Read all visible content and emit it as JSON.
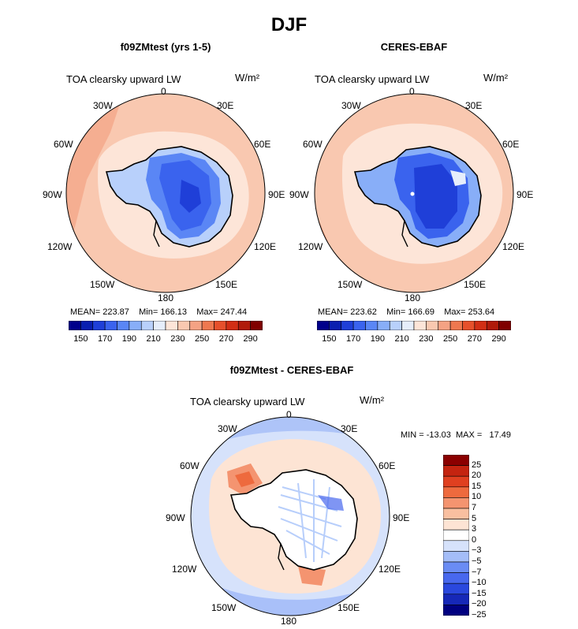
{
  "title": "DJF",
  "colors": {
    "abs_scale": [
      "#00008b",
      "#0a1fb0",
      "#1f3fd8",
      "#3a63ee",
      "#5a86f5",
      "#88aef8",
      "#b8d0fb",
      "#e6eefb",
      "#fde5d8",
      "#f9c8b0",
      "#f4a284",
      "#ee7850",
      "#e6502b",
      "#d22e14",
      "#b01a0a",
      "#800000"
    ],
    "diff_scale": [
      "#000080",
      "#1628b8",
      "#2a48de",
      "#4868ee",
      "#6a8cf4",
      "#a4bdf8",
      "#d6e2fb",
      "#ffffff",
      "#fde4d4",
      "#f9bfa0",
      "#f49470",
      "#ee6a3e",
      "#e04020",
      "#c42410",
      "#8b0000"
    ],
    "land_line": "#000000",
    "frame": "#000000"
  },
  "panels": [
    {
      "name": "f09ZMtest (yrs 1-5)",
      "variable": "TOA clearsky upward LW",
      "units": "W/m²",
      "stats": "MEAN= 223.87    Min= 166.13    Max= 247.44",
      "labelbar_ticks": [
        "150",
        "170",
        "190",
        "210",
        "230",
        "250",
        "270",
        "290"
      ]
    },
    {
      "name": "CERES-EBAF",
      "variable": "TOA clearsky upward LW",
      "units": "W/m²",
      "stats": "MEAN= 223.62    Min= 166.69    Max= 253.64",
      "labelbar_ticks": [
        "150",
        "170",
        "190",
        "210",
        "230",
        "250",
        "270",
        "290"
      ]
    },
    {
      "name": "f09ZMtest - CERES-EBAF",
      "variable": "TOA clearsky upward LW",
      "units": "W/m²",
      "stats": "MIN = -13.03  MAX =   17.49",
      "labelbar_ticks": [
        "25",
        "20",
        "15",
        "10",
        "7",
        "5",
        "3",
        "0",
        "−3",
        "−5",
        "−7",
        "−10",
        "−15",
        "−20",
        "−25"
      ]
    }
  ],
  "longitude_labels": {
    "0": "0",
    "30E": "30E",
    "60E": "60E",
    "90E": "90E",
    "120E": "120E",
    "150E": "150E",
    "180": "180",
    "150W": "150W",
    "120W": "120W",
    "90W": "90W",
    "60W": "60W",
    "30W": "30W"
  }
}
